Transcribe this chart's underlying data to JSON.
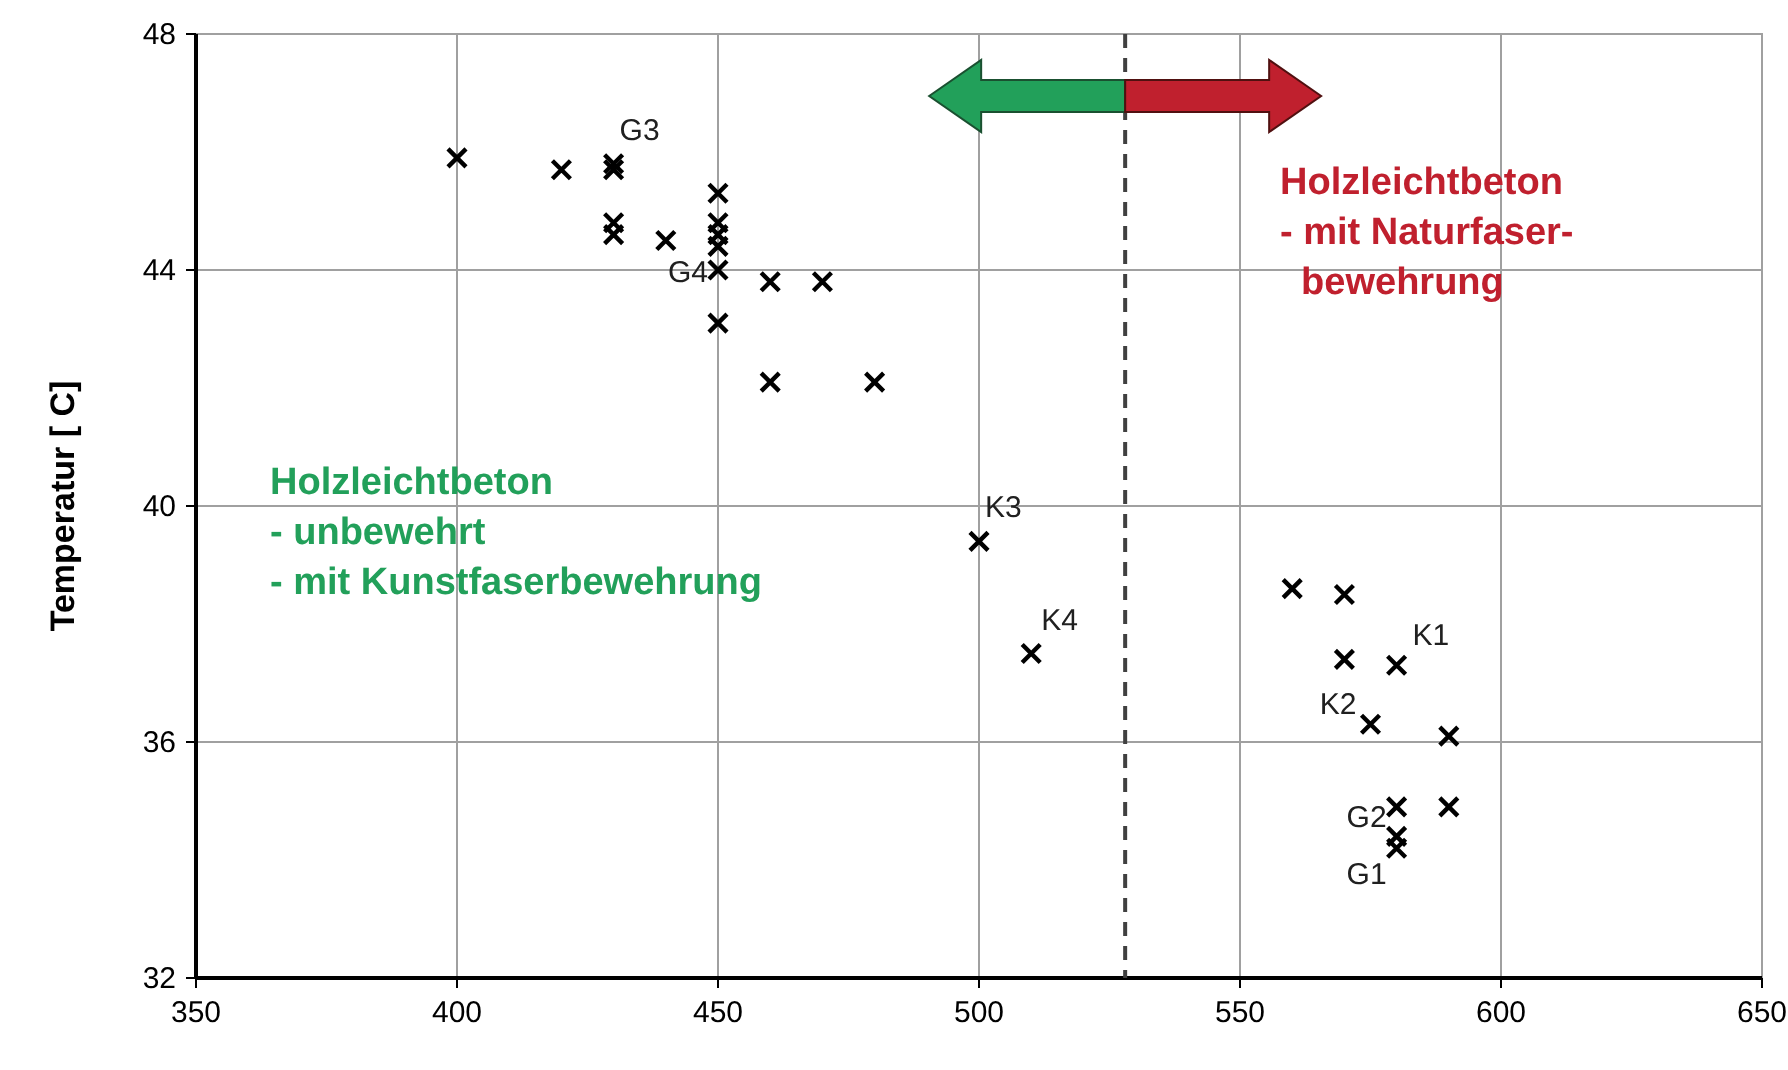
{
  "chart_data": {
    "type": "scatter",
    "ylabel": "Temperatur [ C]",
    "marker": "cross",
    "grid": true,
    "xlim": [
      350,
      650
    ],
    "xticks": [
      350,
      400,
      450,
      500,
      550,
      600,
      650
    ],
    "ylim": [
      32,
      48
    ],
    "yticks": [
      32,
      36,
      40,
      44,
      48
    ],
    "series": [
      {
        "color": "#000000",
        "x": [
          400,
          420,
          430,
          430,
          430,
          430,
          440,
          450,
          450,
          450,
          450,
          450,
          450,
          460,
          470,
          460,
          480,
          500,
          510,
          560,
          570,
          570,
          580,
          575,
          590,
          580,
          590,
          580,
          580
        ],
        "values": [
          45.9,
          45.7,
          45.8,
          45.7,
          44.8,
          44.6,
          44.5,
          45.3,
          44.8,
          44.6,
          44.4,
          44.0,
          43.1,
          43.8,
          43.8,
          42.1,
          42.1,
          39.4,
          37.5,
          38.6,
          38.5,
          37.4,
          37.3,
          36.3,
          36.1,
          34.9,
          34.9,
          34.4,
          34.2
        ]
      }
    ],
    "ref_lines": [
      {
        "axis": "x",
        "value": 528,
        "color": "#404040",
        "line_style": "dashed"
      }
    ],
    "annotations": [
      {
        "text": "G3",
        "x": 430,
        "y": 45.8
      },
      {
        "text": "G4",
        "x": 450,
        "y": 44.0
      },
      {
        "text": "K3",
        "x": 500,
        "y": 39.4
      },
      {
        "text": "K4",
        "x": 510,
        "y": 37.5
      },
      {
        "text": "K1",
        "x": 580,
        "y": 37.3
      },
      {
        "text": "K2",
        "x": 575,
        "y": 36.3
      },
      {
        "text": "G2",
        "x": 580,
        "y": 34.9
      },
      {
        "text": "G1",
        "x": 580,
        "y": 34.2
      },
      "Holzleichtbeton\n- unbewehrt\n- mit Kunstfaserbewehrung",
      "Holzleichtbeton\n- mit Naturfaser-\n  bewehrung"
    ]
  }
}
